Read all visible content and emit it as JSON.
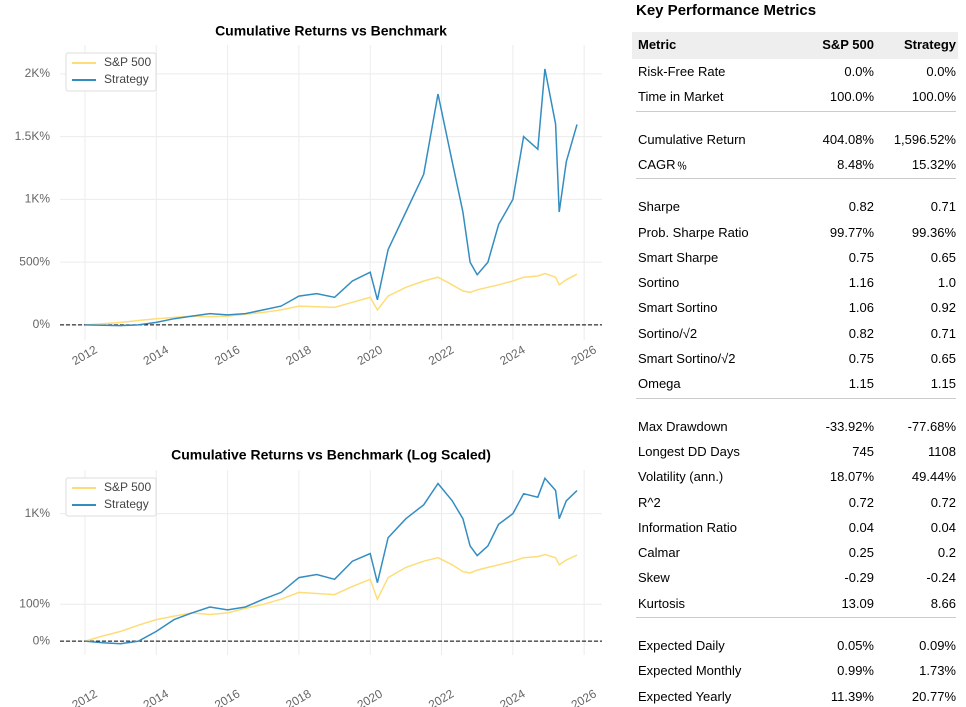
{
  "chart_data": [
    {
      "type": "line",
      "title": "Cumulative Returns vs Benchmark",
      "x": [
        2012.0,
        2012.5,
        2013.0,
        2013.5,
        2014.0,
        2014.5,
        2015.0,
        2015.5,
        2016.0,
        2016.5,
        2017.0,
        2017.5,
        2018.0,
        2018.5,
        2019.0,
        2019.5,
        2020.0,
        2020.2,
        2020.5,
        2021.0,
        2021.5,
        2021.9,
        2022.3,
        2022.6,
        2022.8,
        2023.0,
        2023.3,
        2023.6,
        2024.0,
        2024.3,
        2024.7,
        2024.9,
        2025.2,
        2025.3,
        2025.5,
        2025.8
      ],
      "series": [
        {
          "name": "S&P 500",
          "color": "#fedd78",
          "values": [
            0,
            10,
            20,
            35,
            50,
            60,
            70,
            65,
            70,
            85,
            100,
            120,
            150,
            145,
            140,
            180,
            220,
            120,
            230,
            300,
            350,
            380,
            320,
            270,
            260,
            280,
            300,
            320,
            350,
            380,
            390,
            410,
            380,
            320,
            360,
            404
          ]
        },
        {
          "name": "Strategy",
          "color": "#348dc1",
          "values": [
            0,
            -3,
            -5,
            0,
            20,
            50,
            70,
            90,
            80,
            90,
            120,
            150,
            230,
            250,
            220,
            350,
            420,
            200,
            600,
            900,
            1200,
            1840,
            1300,
            900,
            500,
            400,
            500,
            800,
            1000,
            1500,
            1400,
            2040,
            1600,
            900,
            1300,
            1597
          ]
        }
      ],
      "xlim": [
        2011.3,
        2026.5
      ],
      "xticks": [
        2012,
        2014,
        2016,
        2018,
        2020,
        2022,
        2024,
        2026
      ],
      "ylim": [
        -120,
        2230
      ],
      "yticks": [
        {
          "value": 0,
          "label": "0%"
        },
        {
          "value": 500,
          "label": "500%"
        },
        {
          "value": 1000,
          "label": "1K%"
        },
        {
          "value": 1500,
          "label": "1.5K%"
        },
        {
          "value": 2000,
          "label": "2K%"
        }
      ],
      "grid": true,
      "legend": "upper left"
    },
    {
      "type": "line",
      "title": "Cumulative Returns vs Benchmark (Log Scaled)",
      "x": [
        2012.0,
        2012.5,
        2013.0,
        2013.5,
        2014.0,
        2014.5,
        2015.0,
        2015.5,
        2016.0,
        2016.5,
        2017.0,
        2017.5,
        2018.0,
        2018.5,
        2019.0,
        2019.5,
        2020.0,
        2020.2,
        2020.5,
        2021.0,
        2021.5,
        2021.9,
        2022.3,
        2022.6,
        2022.8,
        2023.0,
        2023.3,
        2023.6,
        2024.0,
        2024.3,
        2024.7,
        2024.9,
        2025.2,
        2025.3,
        2025.5,
        2025.8
      ],
      "series": [
        {
          "name": "S&P 500",
          "color": "#fedd78",
          "values": [
            0,
            10,
            20,
            35,
            50,
            60,
            70,
            65,
            70,
            85,
            100,
            120,
            150,
            145,
            140,
            180,
            220,
            120,
            230,
            300,
            350,
            380,
            320,
            270,
            260,
            280,
            300,
            320,
            350,
            380,
            390,
            410,
            380,
            320,
            360,
            404
          ]
        },
        {
          "name": "Strategy",
          "color": "#348dc1",
          "values": [
            0,
            -3,
            -5,
            0,
            20,
            50,
            70,
            90,
            80,
            90,
            120,
            150,
            230,
            250,
            220,
            350,
            420,
            200,
            600,
            900,
            1200,
            1840,
            1300,
            900,
            500,
            400,
            500,
            800,
            1000,
            1500,
            1400,
            2040,
            1600,
            900,
            1300,
            1597
          ]
        }
      ],
      "xlim": [
        2011.3,
        2026.5
      ],
      "xticks": [
        2012,
        2014,
        2016,
        2018,
        2020,
        2022,
        2024,
        2026
      ],
      "ylim": [
        -23,
        2400
      ],
      "yscale": "log",
      "yticks": [
        {
          "value": 0,
          "label": "0%"
        },
        {
          "value": 100,
          "label": "100%"
        },
        {
          "value": 1000,
          "label": "1K%"
        }
      ],
      "grid": true,
      "legend": "upper left"
    }
  ],
  "table": {
    "title": "Key Performance Metrics",
    "header": [
      "Metric",
      "S&P 500",
      "Strategy"
    ],
    "groups": [
      [
        [
          "Risk-Free Rate",
          "0.0%",
          "0.0%"
        ],
        [
          "Time in Market",
          "100.0%",
          "100.0%"
        ]
      ],
      [
        [
          "Cumulative Return",
          "404.08%",
          "1,596.52%"
        ],
        [
          "CAGR﹪",
          "8.48%",
          "15.32%"
        ]
      ],
      [
        [
          "Sharpe",
          "0.82",
          "0.71"
        ],
        [
          "Prob. Sharpe Ratio",
          "99.77%",
          "99.36%"
        ],
        [
          "Smart Sharpe",
          "0.75",
          "0.65"
        ],
        [
          "Sortino",
          "1.16",
          "1.0"
        ],
        [
          "Smart Sortino",
          "1.06",
          "0.92"
        ],
        [
          "Sortino/√2",
          "0.82",
          "0.71"
        ],
        [
          "Smart Sortino/√2",
          "0.75",
          "0.65"
        ],
        [
          "Omega",
          "1.15",
          "1.15"
        ]
      ],
      [
        [
          "Max Drawdown",
          "-33.92%",
          "-77.68%"
        ],
        [
          "Longest DD Days",
          "745",
          "1108"
        ],
        [
          "Volatility (ann.)",
          "18.07%",
          "49.44%"
        ],
        [
          "R^2",
          "0.72",
          "0.72"
        ],
        [
          "Information Ratio",
          "0.04",
          "0.04"
        ],
        [
          "Calmar",
          "0.25",
          "0.2"
        ],
        [
          "Skew",
          "-0.29",
          "-0.24"
        ],
        [
          "Kurtosis",
          "13.09",
          "8.66"
        ]
      ],
      [
        [
          "Expected Daily",
          "0.05%",
          "0.09%"
        ],
        [
          "Expected Monthly",
          "0.99%",
          "1.73%"
        ],
        [
          "Expected Yearly",
          "11.39%",
          "20.77%"
        ]
      ]
    ]
  }
}
